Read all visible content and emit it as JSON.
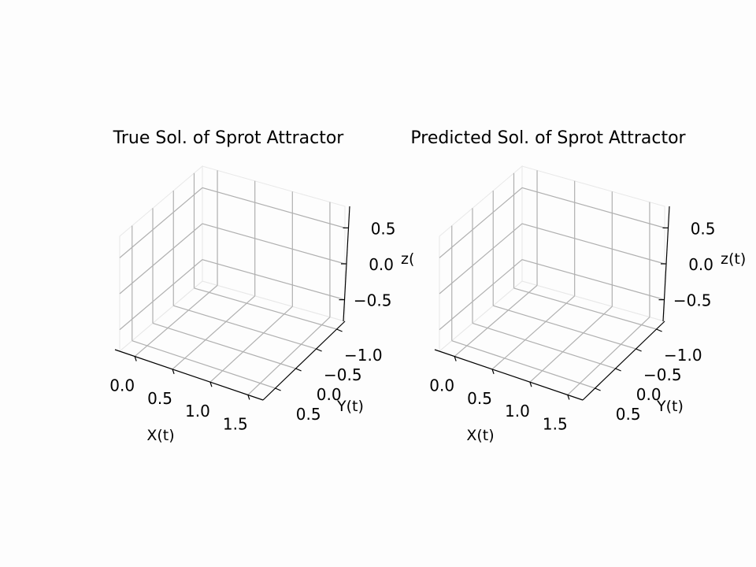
{
  "chart_data": [
    {
      "type": "scatter",
      "title": "True Sol. of Sprot Attractor",
      "xlabel": "X(t)",
      "ylabel": "Y(t)",
      "zlabel": "z(",
      "x_ticks": [
        "0.0",
        "0.5",
        "1.0",
        "1.5"
      ],
      "y_ticks": [
        "−1.0",
        "−0.5",
        "0.0",
        "0.5"
      ],
      "z_ticks": [
        "−0.5",
        "0.0",
        "0.5"
      ],
      "xlim": [
        -0.2,
        1.7
      ],
      "ylim": [
        -1.2,
        0.8
      ],
      "zlim": [
        -0.8,
        0.8
      ],
      "grid": true,
      "series": []
    },
    {
      "type": "scatter",
      "title": "Predicted Sol. of Sprot Attractor",
      "xlabel": "X(t)",
      "ylabel": "Y(t)",
      "zlabel": "z(t)",
      "x_ticks": [
        "0.0",
        "0.5",
        "1.0",
        "1.5"
      ],
      "y_ticks": [
        "−1.0",
        "−0.5",
        "0.0",
        "0.5"
      ],
      "z_ticks": [
        "−0.5",
        "0.0",
        "0.5"
      ],
      "xlim": [
        -0.2,
        1.7
      ],
      "ylim": [
        -1.2,
        0.8
      ],
      "zlim": [
        -0.8,
        0.8
      ],
      "grid": true,
      "series": []
    }
  ]
}
